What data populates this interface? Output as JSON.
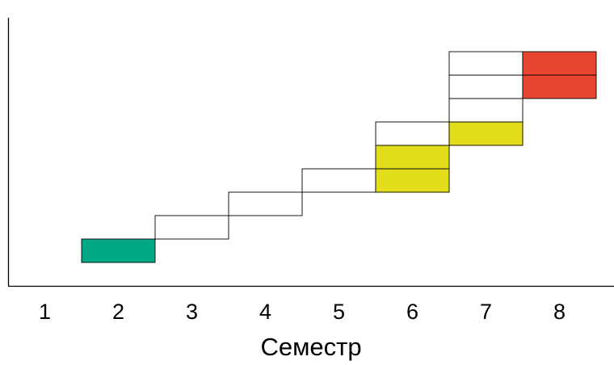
{
  "chart_data": {
    "type": "bar",
    "xlabel": "Семестр",
    "ylabel": "",
    "categories": [
      "1",
      "2",
      "3",
      "4",
      "5",
      "6",
      "7",
      "8"
    ],
    "grid": false,
    "legend": "none",
    "blocks": [
      {
        "semester": 2,
        "level": 1,
        "color": "#00a985"
      },
      {
        "semester": 3,
        "level": 2,
        "color": "#ffffff"
      },
      {
        "semester": 4,
        "level": 3,
        "color": "#ffffff"
      },
      {
        "semester": 5,
        "level": 4,
        "color": "#ffffff"
      },
      {
        "semester": 6,
        "level": 4,
        "color": "#e3dd1b"
      },
      {
        "semester": 6,
        "level": 5,
        "color": "#e3dd1b"
      },
      {
        "semester": 6,
        "level": 6,
        "color": "#ffffff"
      },
      {
        "semester": 7,
        "level": 6,
        "color": "#e3dd1b"
      },
      {
        "semester": 7,
        "level": 7,
        "color": "#ffffff"
      },
      {
        "semester": 7,
        "level": 8,
        "color": "#ffffff"
      },
      {
        "semester": 7,
        "level": 9,
        "color": "#ffffff"
      },
      {
        "semester": 8,
        "level": 8,
        "color": "#e84531"
      },
      {
        "semester": 8,
        "level": 9,
        "color": "#e84531"
      }
    ]
  }
}
